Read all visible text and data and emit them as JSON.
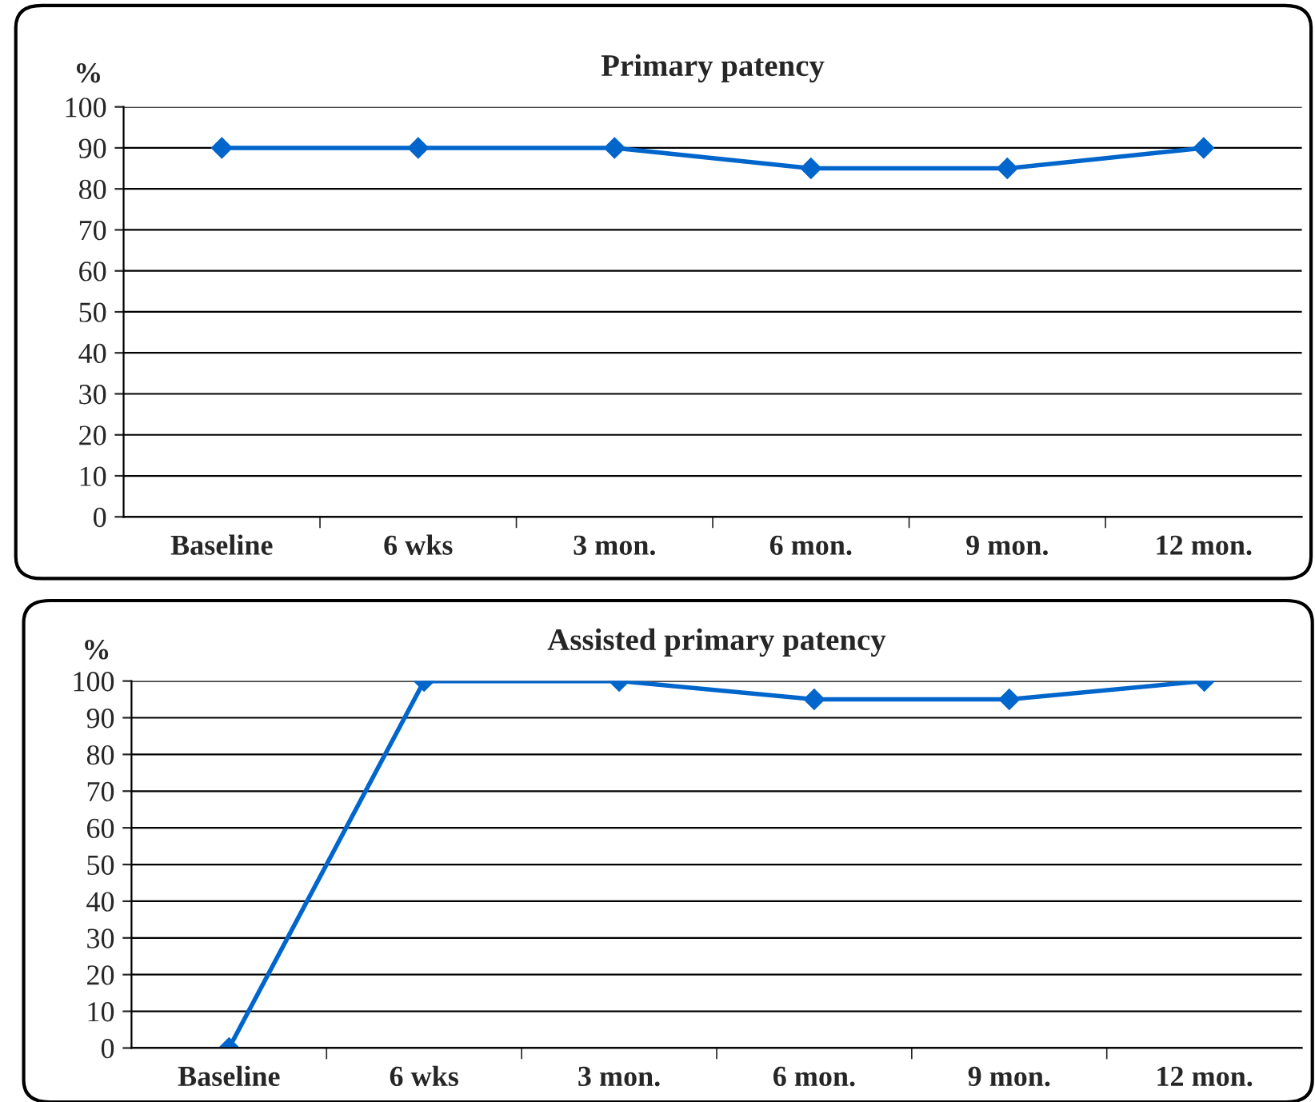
{
  "chart_data": [
    {
      "type": "line",
      "title": "Primary patency",
      "ylabel": "%",
      "categories": [
        "Baseline",
        "6 wks",
        "3 mon.",
        "6 mon.",
        "9 mon.",
        "12 mon."
      ],
      "series": [
        {
          "color": "#0066cc",
          "values": [
            90,
            90,
            90,
            85,
            85,
            90
          ]
        }
      ],
      "ylim": [
        0,
        100
      ],
      "yticks": [
        0,
        10,
        20,
        30,
        40,
        50,
        60,
        70,
        80,
        90,
        100
      ],
      "grid": "y",
      "legend": false,
      "marker": "diamond",
      "line_style": "solid"
    },
    {
      "type": "line",
      "title": "Assisted primary patency",
      "ylabel": "%",
      "categories": [
        "Baseline",
        "6 wks",
        "3 mon.",
        "6 mon.",
        "9 mon.",
        "12 mon."
      ],
      "series": [
        {
          "color": "#0066cc",
          "values": [
            0,
            100,
            100,
            95,
            95,
            100
          ]
        }
      ],
      "ylim": [
        0,
        100
      ],
      "yticks": [
        0,
        10,
        20,
        30,
        40,
        50,
        60,
        70,
        80,
        90,
        100
      ],
      "grid": "y",
      "legend": false,
      "marker": "diamond",
      "line_style": "solid"
    }
  ]
}
